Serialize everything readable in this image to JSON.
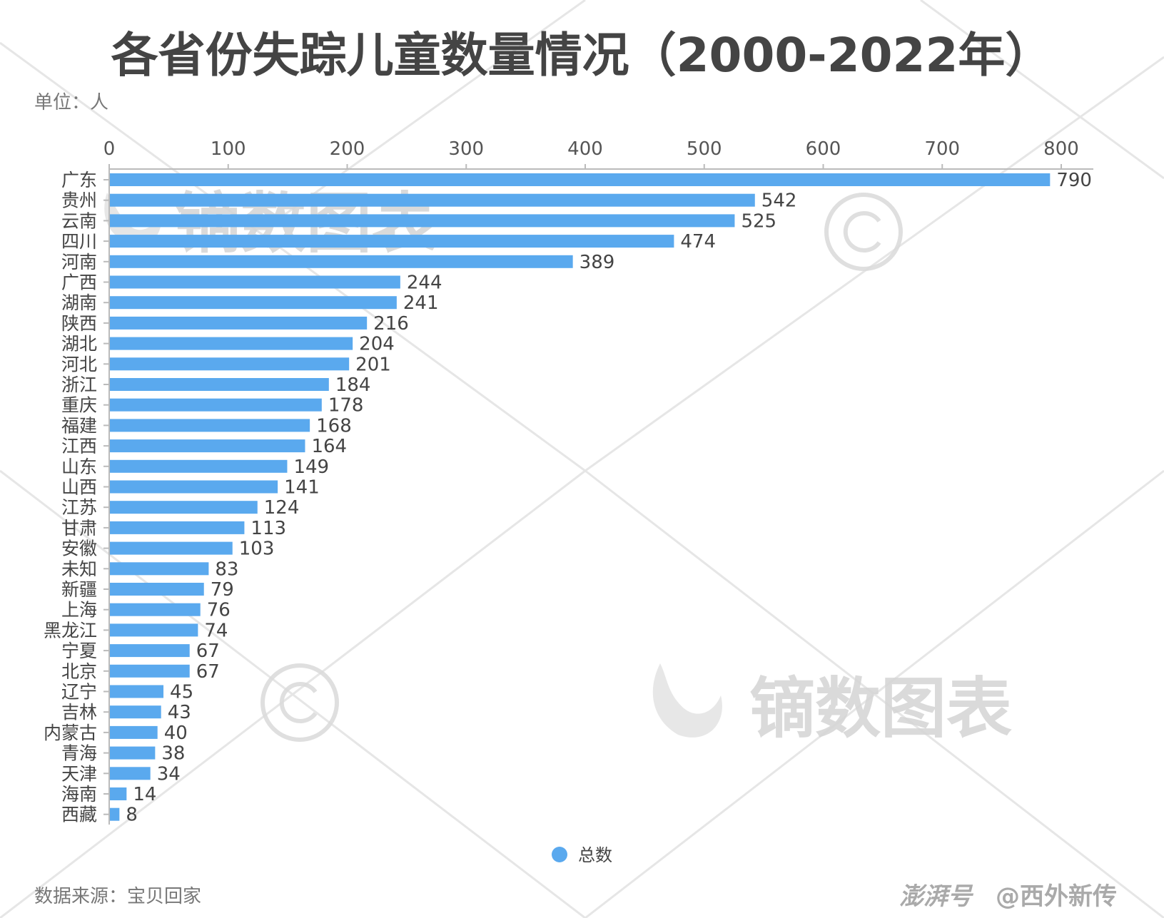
{
  "title": "各省份失踪儿童数量情况（2000-2022年）",
  "unit_label": "单位：人",
  "source_label": "数据来源：宝贝回家",
  "watermark": "镝数图表",
  "credit": {
    "platform": "澎湃号",
    "author": "@西外新传"
  },
  "colors": {
    "bar": "#5aa9ee",
    "axis": "#bbbbbb",
    "text": "#444444",
    "watermark": "#d6d6d6"
  },
  "legend": {
    "icon": "circle-icon",
    "label": "总数",
    "placement": "bottom"
  },
  "chart_data": {
    "type": "bar",
    "orientation": "horizontal",
    "xaxis_position": "top",
    "xlim": [
      0,
      800
    ],
    "xticks": [
      0,
      100,
      200,
      300,
      400,
      500,
      600,
      700,
      800
    ],
    "grid": false,
    "categories": [
      "广东",
      "贵州",
      "云南",
      "四川",
      "河南",
      "广西",
      "湖南",
      "陕西",
      "湖北",
      "河北",
      "浙江",
      "重庆",
      "福建",
      "江西",
      "山东",
      "山西",
      "江苏",
      "甘肃",
      "安徽",
      "未知",
      "新疆",
      "上海",
      "黑龙江",
      "宁夏",
      "北京",
      "辽宁",
      "吉林",
      "内蒙古",
      "青海",
      "天津",
      "海南",
      "西藏"
    ],
    "series": [
      {
        "name": "总数",
        "values": [
          790,
          542,
          525,
          474,
          389,
          244,
          241,
          216,
          204,
          201,
          184,
          178,
          168,
          164,
          149,
          141,
          124,
          113,
          103,
          83,
          79,
          76,
          74,
          67,
          67,
          45,
          43,
          40,
          38,
          34,
          14,
          8
        ]
      }
    ]
  }
}
